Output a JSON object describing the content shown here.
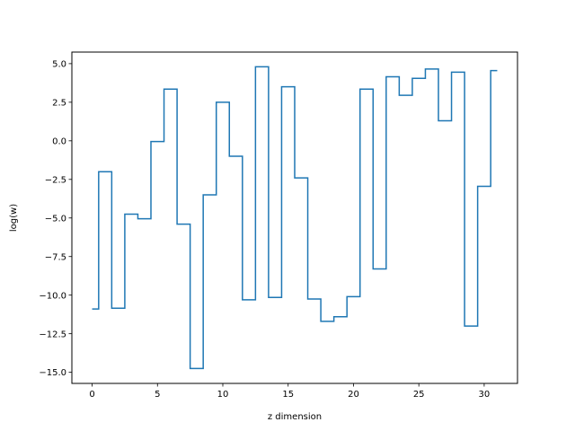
{
  "chart_data": {
    "type": "line",
    "drawstyle": "steps-mid",
    "xlabel": "z dimension",
    "ylabel": "log(w)",
    "xlim": [
      -1.55,
      32.55
    ],
    "ylim": [
      -15.72,
      5.75
    ],
    "xticks": [
      0,
      5,
      10,
      15,
      20,
      25,
      30
    ],
    "yticks": [
      -15.0,
      -12.5,
      -10.0,
      -7.5,
      -5.0,
      -2.5,
      0.0,
      2.5,
      5.0
    ],
    "xtick_labels": [
      "0",
      "5",
      "10",
      "15",
      "20",
      "25",
      "30"
    ],
    "ytick_labels": [
      "−15.0",
      "−12.5",
      "−10.0",
      "−7.5",
      "−5.0",
      "−2.5",
      "0.0",
      "2.5",
      "5.0"
    ],
    "grid": false,
    "series": [
      {
        "color": "#1f77b4",
        "x": [
          0,
          1,
          2,
          3,
          4,
          5,
          6,
          7,
          8,
          9,
          10,
          11,
          12,
          13,
          14,
          15,
          16,
          17,
          18,
          19,
          20,
          21,
          22,
          23,
          24,
          25,
          26,
          27,
          28,
          29,
          30,
          31
        ],
        "values": [
          -10.9,
          -2.0,
          -10.85,
          -4.75,
          -5.05,
          -0.05,
          3.35,
          -5.4,
          -14.75,
          -3.5,
          2.5,
          -1.0,
          -10.3,
          4.8,
          -10.15,
          3.5,
          -2.4,
          -10.25,
          -11.7,
          -11.4,
          -10.1,
          3.35,
          -8.3,
          4.15,
          2.95,
          4.05,
          4.65,
          1.3,
          4.45,
          -12.0,
          -2.95,
          4.55
        ]
      }
    ]
  }
}
